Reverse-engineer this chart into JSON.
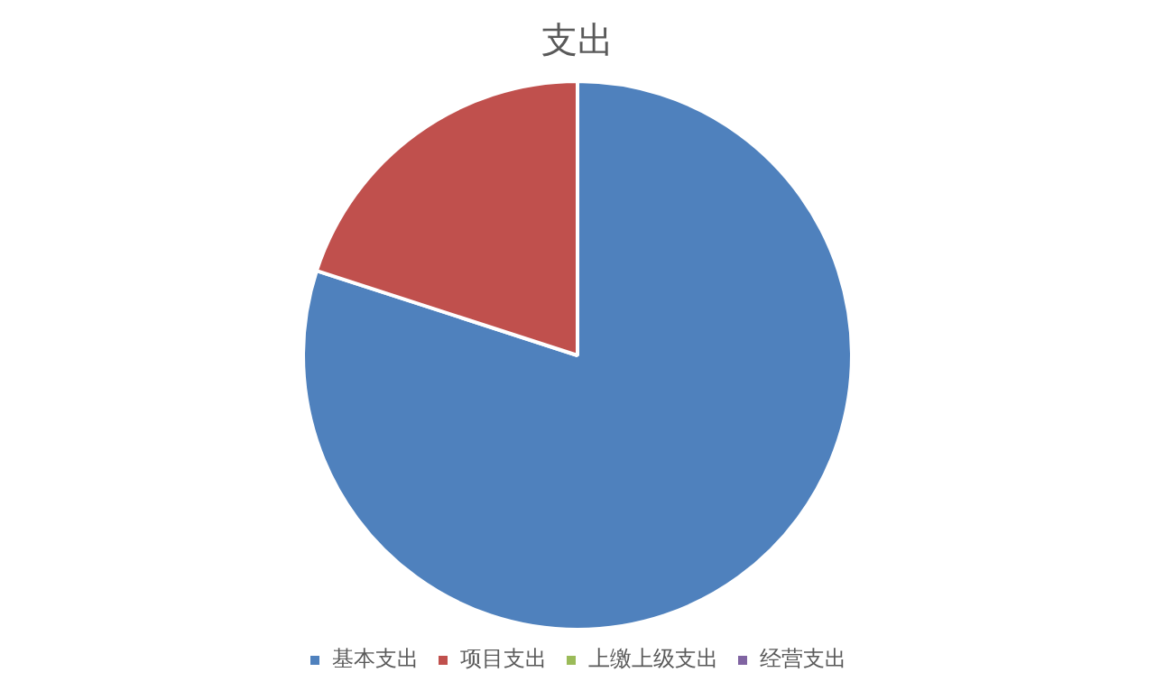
{
  "chart_data": {
    "type": "pie",
    "title": "支出",
    "categories": [
      "基本支出",
      "项目支出",
      "上缴上级支出",
      "经营支出"
    ],
    "values": [
      80,
      20,
      0,
      0
    ],
    "colors": [
      "#4f81bd",
      "#c0504d",
      "#9bbb59",
      "#8064a2"
    ],
    "legend": "bottom"
  }
}
